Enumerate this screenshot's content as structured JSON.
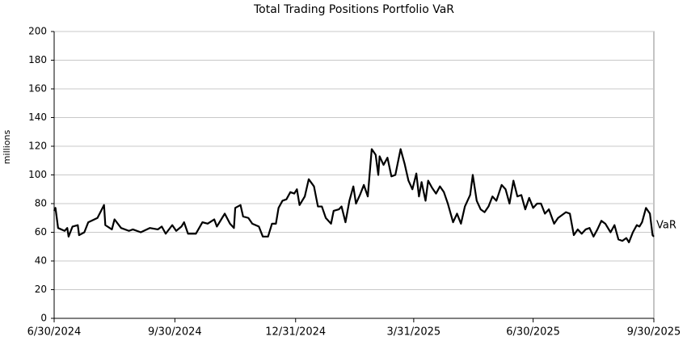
{
  "chart_data": {
    "type": "line",
    "title": "Total Trading Positions Portfolio VaR",
    "y_label": "millions",
    "x": [
      "6/30/2024",
      "7/1/2024",
      "7/3/2024",
      "7/8/2024",
      "7/10/2024",
      "7/11/2024",
      "7/14/2024",
      "7/18/2024",
      "7/19/2024",
      "7/23/2024",
      "7/26/2024",
      "8/2/2024",
      "8/7/2024",
      "8/8/2024",
      "8/13/2024",
      "8/15/2024",
      "8/20/2024",
      "8/26/2024",
      "8/29/2024",
      "9/4/2024",
      "9/11/2024",
      "9/17/2024",
      "9/20/2024",
      "9/23/2024",
      "9/28/2024",
      "10/1/2024",
      "10/5/2024",
      "10/7/2024",
      "10/10/2024",
      "10/16/2024",
      "10/21/2024",
      "10/25/2024",
      "10/30/2024",
      "11/1/2024",
      "11/5/2024",
      "11/7/2024",
      "11/11/2024",
      "11/14/2024",
      "11/15/2024",
      "11/19/2024",
      "11/21/2024",
      "11/25/2024",
      "11/28/2024",
      "12/3/2024",
      "12/6/2024",
      "12/10/2024",
      "12/13/2024",
      "12/16/2024",
      "12/18/2024",
      "12/21/2024",
      "12/24/2024",
      "12/27/2024",
      "12/30/2024",
      "1/1/2025",
      "1/3/2025",
      "1/7/2025",
      "1/10/2025",
      "1/14/2025",
      "1/17/2025",
      "1/20/2025",
      "1/23/2025",
      "1/27/2025",
      "1/29/2025",
      "2/2/2025",
      "2/4/2025",
      "2/7/2025",
      "2/10/2025",
      "2/13/2025",
      "2/15/2025",
      "2/18/2025",
      "2/21/2025",
      "2/24/2025",
      "2/27/2025",
      "3/2/2025",
      "3/4/2025",
      "3/5/2025",
      "3/8/2025",
      "3/11/2025",
      "3/14/2025",
      "3/17/2025",
      "3/21/2025",
      "3/24/2025",
      "3/27/2025",
      "3/30/2025",
      "4/2/2025",
      "4/4/2025",
      "4/6/2025",
      "4/9/2025",
      "4/11/2025",
      "4/14/2025",
      "4/17/2025",
      "4/20/2025",
      "4/23/2025",
      "4/26/2025",
      "4/30/2025",
      "5/3/2025",
      "5/6/2025",
      "5/9/2025",
      "5/13/2025",
      "5/15/2025",
      "5/18/2025",
      "5/21/2025",
      "5/24/2025",
      "5/27/2025",
      "5/30/2025",
      "6/2/2025",
      "6/6/2025",
      "6/9/2025",
      "6/12/2025",
      "6/15/2025",
      "6/18/2025",
      "6/21/2025",
      "6/24/2025",
      "6/27/2025",
      "6/30/2025",
      "7/3/2025",
      "7/6/2025",
      "7/9/2025",
      "7/12/2025",
      "7/16/2025",
      "7/19/2025",
      "7/25/2025",
      "7/28/2025",
      "7/31/2025",
      "8/3/2025",
      "8/6/2025",
      "8/9/2025",
      "8/12/2025",
      "8/15/2025",
      "8/18/2025",
      "8/21/2025",
      "8/24/2025",
      "8/28/2025",
      "8/31/2025",
      "9/3/2025",
      "9/6/2025",
      "9/9/2025",
      "9/11/2025",
      "9/14/2025",
      "9/17/2025",
      "9/19/2025",
      "9/21/2025",
      "9/24/2025",
      "9/27/2025",
      "9/29/2025",
      "9/30/2025"
    ],
    "series": [
      {
        "name": "VaR",
        "color": "#000000",
        "values": [
          75,
          77,
          63,
          61,
          63,
          57,
          64,
          65,
          58,
          60,
          67,
          70,
          79,
          65,
          62,
          69,
          63,
          61,
          62,
          60,
          63,
          62,
          64,
          59,
          65,
          61,
          64,
          67,
          59,
          59,
          67,
          66,
          69,
          64,
          70,
          73,
          66,
          63,
          77,
          79,
          71,
          70,
          66,
          64,
          57,
          57,
          66,
          66,
          77,
          82,
          83,
          88,
          87,
          90,
          79,
          85,
          97,
          92,
          78,
          78,
          70,
          66,
          75,
          76,
          78,
          67,
          82,
          92,
          80,
          86,
          93,
          85,
          118,
          114,
          100,
          113,
          107,
          112,
          99,
          100,
          118,
          108,
          96,
          90,
          101,
          85,
          95,
          82,
          96,
          91,
          87,
          92,
          88,
          80,
          67,
          73,
          66,
          78,
          86,
          100,
          82,
          76,
          74,
          78,
          85,
          82,
          93,
          90,
          80,
          96,
          85,
          86,
          76,
          84,
          77,
          80,
          80,
          73,
          76,
          66,
          70,
          74,
          73,
          58,
          62,
          59,
          62,
          63,
          57,
          62,
          68,
          66,
          60,
          65,
          55,
          54,
          56,
          53,
          60,
          65,
          64,
          67,
          77,
          73,
          58,
          57
        ]
      }
    ],
    "xlim": [
      "6/30/2024",
      "9/30/2025"
    ],
    "xticks": [
      "6/30/2024",
      "9/30/2024",
      "12/31/2024",
      "3/31/2025",
      "6/30/2025",
      "9/30/2025"
    ],
    "ylim": [
      0,
      200
    ],
    "yticks": [
      0,
      20,
      40,
      60,
      80,
      100,
      120,
      140,
      160,
      180,
      200
    ],
    "grid": true
  }
}
